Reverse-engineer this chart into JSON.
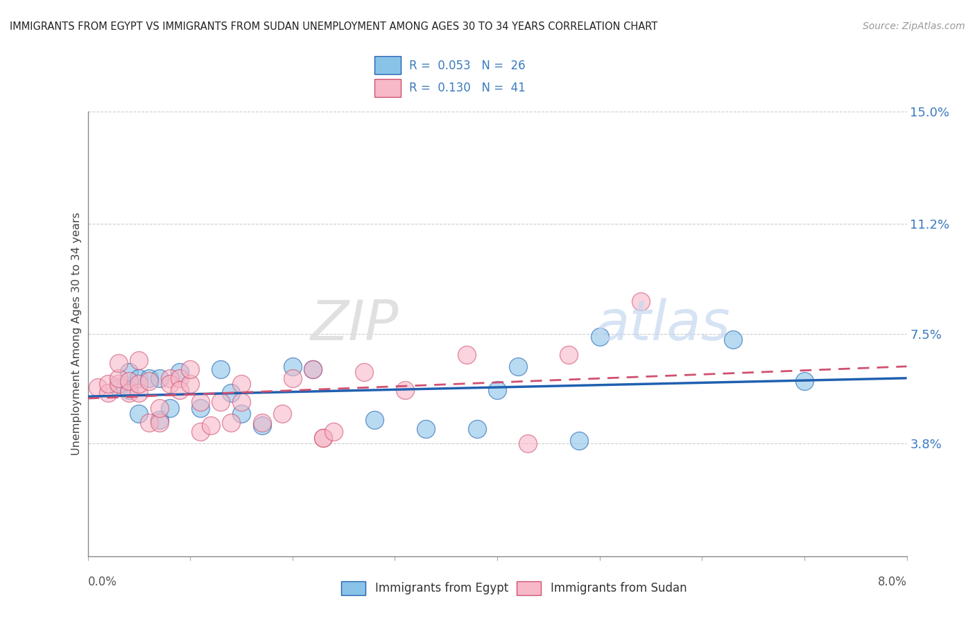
{
  "title": "IMMIGRANTS FROM EGYPT VS IMMIGRANTS FROM SUDAN UNEMPLOYMENT AMONG AGES 30 TO 34 YEARS CORRELATION CHART",
  "source": "Source: ZipAtlas.com",
  "ylabel": "Unemployment Among Ages 30 to 34 years",
  "xlabel_egypt": "Immigrants from Egypt",
  "xlabel_sudan": "Immigrants from Sudan",
  "r_egypt": 0.053,
  "n_egypt": 26,
  "r_sudan": 0.13,
  "n_sudan": 41,
  "xlim": [
    0.0,
    0.08
  ],
  "ylim": [
    0.0,
    0.15
  ],
  "yticks": [
    0.038,
    0.075,
    0.112,
    0.15
  ],
  "ytick_labels": [
    "3.8%",
    "7.5%",
    "11.2%",
    "15.0%"
  ],
  "xticks": [
    0.0,
    0.01,
    0.02,
    0.03,
    0.04,
    0.05,
    0.06,
    0.07,
    0.08
  ],
  "color_egypt": "#89c4e8",
  "color_sudan": "#f7b8c8",
  "trendline_egypt_color": "#2060b0",
  "trendline_sudan_color": "#d05070",
  "watermark_zip": "ZIP",
  "watermark_atlas": "atlas",
  "egypt_x": [
    0.003,
    0.004,
    0.004,
    0.005,
    0.005,
    0.006,
    0.007,
    0.007,
    0.008,
    0.009,
    0.011,
    0.013,
    0.014,
    0.015,
    0.017,
    0.02,
    0.022,
    0.028,
    0.033,
    0.038,
    0.04,
    0.042,
    0.048,
    0.05,
    0.063,
    0.07
  ],
  "egypt_y": [
    0.057,
    0.062,
    0.056,
    0.06,
    0.048,
    0.06,
    0.06,
    0.046,
    0.05,
    0.062,
    0.05,
    0.063,
    0.055,
    0.048,
    0.044,
    0.064,
    0.063,
    0.046,
    0.043,
    0.043,
    0.056,
    0.064,
    0.039,
    0.074,
    0.073,
    0.059
  ],
  "sudan_x": [
    0.001,
    0.002,
    0.002,
    0.003,
    0.003,
    0.003,
    0.004,
    0.004,
    0.005,
    0.005,
    0.005,
    0.006,
    0.006,
    0.007,
    0.007,
    0.008,
    0.008,
    0.009,
    0.009,
    0.01,
    0.01,
    0.011,
    0.011,
    0.012,
    0.013,
    0.014,
    0.015,
    0.015,
    0.017,
    0.019,
    0.02,
    0.022,
    0.023,
    0.023,
    0.024,
    0.027,
    0.031,
    0.037,
    0.043,
    0.047,
    0.054
  ],
  "sudan_y": [
    0.057,
    0.055,
    0.058,
    0.058,
    0.06,
    0.065,
    0.055,
    0.059,
    0.055,
    0.058,
    0.066,
    0.045,
    0.059,
    0.045,
    0.05,
    0.06,
    0.058,
    0.06,
    0.056,
    0.058,
    0.063,
    0.042,
    0.052,
    0.044,
    0.052,
    0.045,
    0.058,
    0.052,
    0.045,
    0.048,
    0.06,
    0.063,
    0.04,
    0.04,
    0.042,
    0.062,
    0.056,
    0.068,
    0.038,
    0.068,
    0.086
  ]
}
